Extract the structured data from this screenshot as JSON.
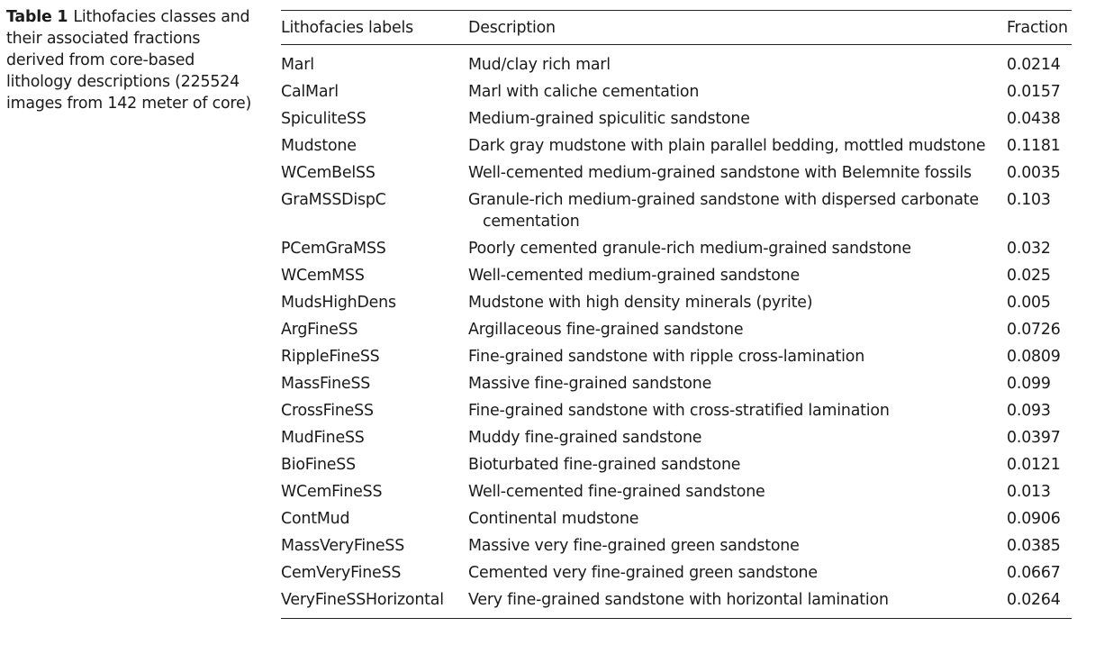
{
  "caption": {
    "label": "Table 1",
    "text": "Lithofacies classes and their associated fractions derived from core-based lithology descriptions (225524 images from 142 meter of core)"
  },
  "table": {
    "headers": [
      "Lithofacies labels",
      "Description",
      "Fraction"
    ],
    "rows": [
      {
        "label": "Marl",
        "description": "Mud/clay rich marl",
        "fraction": "0.0214"
      },
      {
        "label": "CalMarl",
        "description": "Marl with caliche cementation",
        "fraction": "0.0157"
      },
      {
        "label": "SpiculiteSS",
        "description": "Medium-grained spiculitic sandstone",
        "fraction": "0.0438"
      },
      {
        "label": "Mudstone",
        "description": "Dark gray mudstone with plain parallel bedding, mottled mudstone",
        "fraction": "0.1181"
      },
      {
        "label": "WCemBelSS",
        "description": "Well-cemented medium-grained sandstone with Belemnite fossils",
        "fraction": "0.0035"
      },
      {
        "label": "GraMSSDispC",
        "description": "Granule-rich medium-grained sandstone with dispersed carbonate cementation",
        "fraction": "0.103"
      },
      {
        "label": "PCemGraMSS",
        "description": "Poorly cemented granule-rich medium-grained sandstone",
        "fraction": "0.032"
      },
      {
        "label": "WCemMSS",
        "description": "Well-cemented medium-grained sandstone",
        "fraction": "0.025"
      },
      {
        "label": "MudsHighDens",
        "description": "Mudstone with high density minerals (pyrite)",
        "fraction": "0.005"
      },
      {
        "label": "ArgFineSS",
        "description": "Argillaceous fine-grained sandstone",
        "fraction": "0.0726"
      },
      {
        "label": "RippleFineSS",
        "description": "Fine-grained sandstone with ripple cross-lamination",
        "fraction": "0.0809"
      },
      {
        "label": "MassFineSS",
        "description": "Massive fine-grained sandstone",
        "fraction": "0.099"
      },
      {
        "label": "CrossFineSS",
        "description": "Fine-grained sandstone with cross-stratified lamination",
        "fraction": "0.093"
      },
      {
        "label": "MudFineSS",
        "description": "Muddy fine-grained sandstone",
        "fraction": "0.0397"
      },
      {
        "label": "BioFineSS",
        "description": "Bioturbated fine-grained sandstone",
        "fraction": "0.0121"
      },
      {
        "label": "WCemFineSS",
        "description": "Well-cemented fine-grained sandstone",
        "fraction": "0.013"
      },
      {
        "label": "ContMud",
        "description": "Continental mudstone",
        "fraction": "0.0906"
      },
      {
        "label": "MassVeryFineSS",
        "description": "Massive very fine-grained green sandstone",
        "fraction": "0.0385"
      },
      {
        "label": "CemVeryFineSS",
        "description": "Cemented very fine-grained green sandstone",
        "fraction": "0.0667"
      },
      {
        "label": "VeryFineSSHorizontal",
        "description": "Very fine-grained sandstone with horizontal lamination",
        "fraction": "0.0264"
      }
    ]
  }
}
